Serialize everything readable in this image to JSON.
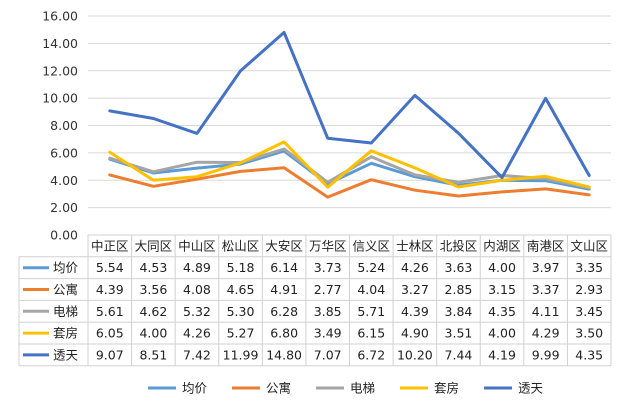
{
  "chart_data": {
    "type": "line",
    "categories": [
      "中正区",
      "大同区",
      "中山区",
      "松山区",
      "大安区",
      "万华区",
      "信义区",
      "士林区",
      "北投区",
      "内湖区",
      "南港区",
      "文山区"
    ],
    "series": [
      {
        "name": "均价",
        "color": "#5b9bd5",
        "values": [
          5.54,
          4.53,
          4.89,
          5.18,
          6.14,
          3.73,
          5.24,
          4.26,
          3.63,
          4.0,
          3.97,
          3.35
        ]
      },
      {
        "name": "公寓",
        "color": "#ed7d31",
        "values": [
          4.39,
          3.56,
          4.08,
          4.65,
          4.91,
          2.77,
          4.04,
          3.27,
          2.85,
          3.15,
          3.37,
          2.93
        ]
      },
      {
        "name": "电梯",
        "color": "#a5a5a5",
        "values": [
          5.61,
          4.62,
          5.32,
          5.3,
          6.28,
          3.85,
          5.71,
          4.39,
          3.84,
          4.35,
          4.11,
          3.45
        ]
      },
      {
        "name": "套房",
        "color": "#ffc000",
        "values": [
          6.05,
          4.0,
          4.26,
          5.27,
          6.8,
          3.49,
          6.15,
          4.9,
          3.51,
          4.0,
          4.29,
          3.5
        ]
      },
      {
        "name": "透天",
        "color": "#4472c4",
        "values": [
          9.07,
          8.51,
          7.42,
          11.99,
          14.8,
          7.07,
          6.72,
          10.2,
          7.44,
          4.19,
          9.99,
          4.35
        ]
      }
    ],
    "y_ticks": [
      "0.00",
      "2.00",
      "4.00",
      "6.00",
      "8.00",
      "10.00",
      "12.00",
      "14.00",
      "16.00"
    ],
    "table_values": [
      [
        "5.54",
        "4.53",
        "4.89",
        "5.18",
        "6.14",
        "3.73",
        "5.24",
        "4.26",
        "3.63",
        "4.00",
        "3.97",
        "3.35"
      ],
      [
        "4.39",
        "3.56",
        "4.08",
        "4.65",
        "4.91",
        "2.77",
        "4.04",
        "3.27",
        "2.85",
        "3.15",
        "3.37",
        "2.93"
      ],
      [
        "5.61",
        "4.62",
        "5.32",
        "5.30",
        "6.28",
        "3.85",
        "5.71",
        "4.39",
        "3.84",
        "4.35",
        "4.11",
        "3.45"
      ],
      [
        "6.05",
        "4.00",
        "4.26",
        "5.27",
        "6.80",
        "3.49",
        "6.15",
        "4.90",
        "3.51",
        "4.00",
        "4.29",
        "3.50"
      ],
      [
        "9.07",
        "8.51",
        "7.42",
        "11.99",
        "14.80",
        "7.07",
        "6.72",
        "10.20",
        "7.44",
        "4.19",
        "9.99",
        "4.35"
      ]
    ],
    "ylim": [
      0,
      16
    ],
    "grid": true,
    "legend_position": "bottom",
    "data_table": true,
    "title": "",
    "xlabel": "",
    "ylabel": ""
  }
}
